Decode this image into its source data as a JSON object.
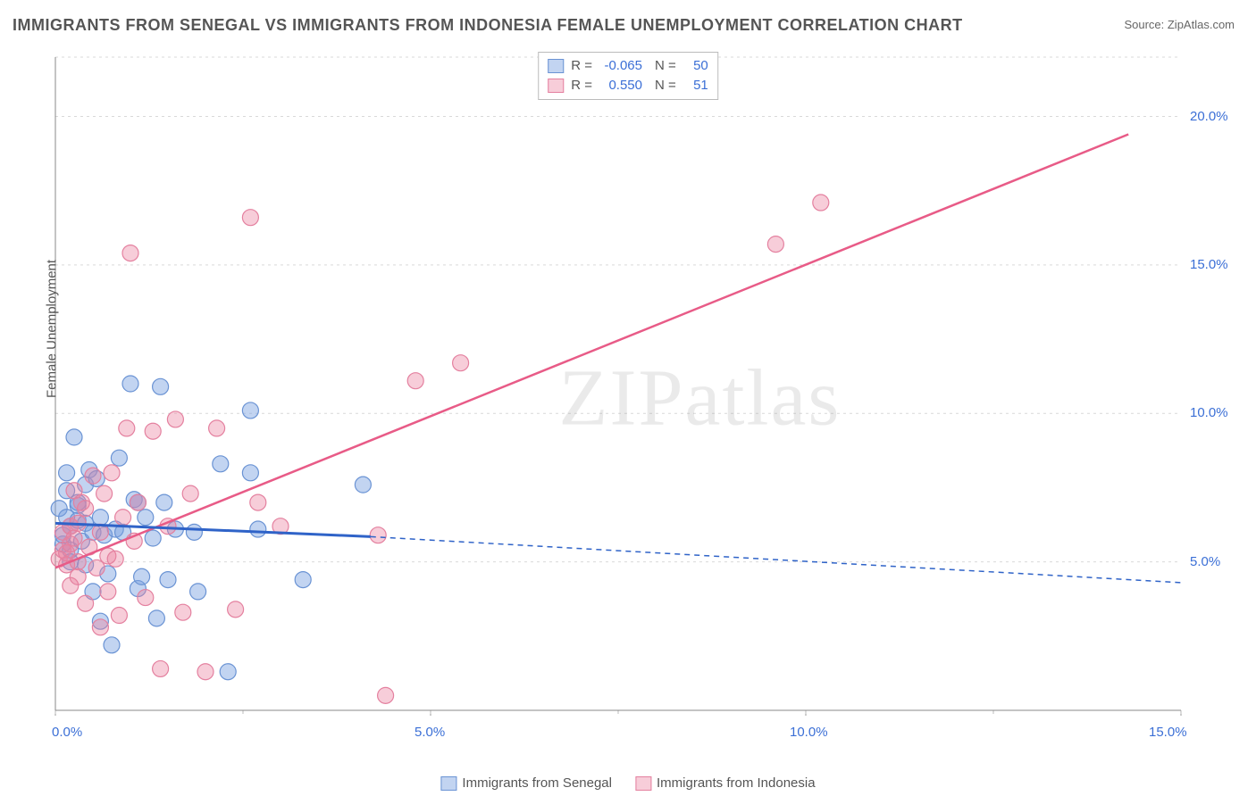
{
  "title": "IMMIGRANTS FROM SENEGAL VS IMMIGRANTS FROM INDONESIA FEMALE UNEMPLOYMENT CORRELATION CHART",
  "source_label": "Source: ZipAtlas.com",
  "watermark": "ZIPatlas",
  "ylabel": "Female Unemployment",
  "chart": {
    "type": "scatter",
    "background_color": "#ffffff",
    "grid_color": "#d9d9d9",
    "axis_border_color": "#888888",
    "xlim": [
      0,
      15
    ],
    "ylim": [
      0,
      22
    ],
    "x_ticks": [
      0,
      5,
      10,
      15
    ],
    "x_tick_labels": [
      "0.0%",
      "5.0%",
      "10.0%",
      "15.0%"
    ],
    "y_ticks": [
      5,
      10,
      15,
      20
    ],
    "y_tick_labels": [
      "5.0%",
      "10.0%",
      "15.0%",
      "20.0%"
    ],
    "tick_fontsize": 15,
    "tick_color": "#3b6fd6",
    "ylabel_fontsize": 15,
    "title_fontsize": 18,
    "series": [
      {
        "name": "Immigrants from Senegal",
        "color_fill": "rgba(120,160,225,0.45)",
        "color_stroke": "#6a93d4",
        "marker_radius": 9,
        "stats": {
          "R": "-0.065",
          "N": "50"
        },
        "regression": {
          "x1": 0,
          "y1": 6.3,
          "x2": 4.2,
          "y2": 5.85,
          "x2_dash": 15,
          "y2_dash": 4.3
        },
        "line_color": "#2f63c8",
        "line_width_solid": 3,
        "line_dash": "6 5",
        "points": [
          [
            0.05,
            6.8
          ],
          [
            0.1,
            5.6
          ],
          [
            0.1,
            5.9
          ],
          [
            0.15,
            6.5
          ],
          [
            0.15,
            7.4
          ],
          [
            0.15,
            8.0
          ],
          [
            0.2,
            5.4
          ],
          [
            0.2,
            5.0
          ],
          [
            0.2,
            6.2
          ],
          [
            0.25,
            9.2
          ],
          [
            0.3,
            6.9
          ],
          [
            0.3,
            6.4
          ],
          [
            0.3,
            7.0
          ],
          [
            0.35,
            5.7
          ],
          [
            0.4,
            4.9
          ],
          [
            0.4,
            6.3
          ],
          [
            0.4,
            7.6
          ],
          [
            0.45,
            8.1
          ],
          [
            0.5,
            4.0
          ],
          [
            0.5,
            6.0
          ],
          [
            0.55,
            7.8
          ],
          [
            0.6,
            6.5
          ],
          [
            0.6,
            3.0
          ],
          [
            0.65,
            5.9
          ],
          [
            0.7,
            4.6
          ],
          [
            0.75,
            2.2
          ],
          [
            0.8,
            6.1
          ],
          [
            0.85,
            8.5
          ],
          [
            0.9,
            6.0
          ],
          [
            1.0,
            11.0
          ],
          [
            1.05,
            7.1
          ],
          [
            1.1,
            4.1
          ],
          [
            1.1,
            7.0
          ],
          [
            1.15,
            4.5
          ],
          [
            1.2,
            6.5
          ],
          [
            1.3,
            5.8
          ],
          [
            1.35,
            3.1
          ],
          [
            1.4,
            10.9
          ],
          [
            1.45,
            7.0
          ],
          [
            1.5,
            4.4
          ],
          [
            1.6,
            6.1
          ],
          [
            1.85,
            6.0
          ],
          [
            1.9,
            4.0
          ],
          [
            2.2,
            8.3
          ],
          [
            2.3,
            1.3
          ],
          [
            2.6,
            10.1
          ],
          [
            2.6,
            8.0
          ],
          [
            2.7,
            6.1
          ],
          [
            3.3,
            4.4
          ],
          [
            4.1,
            7.6
          ]
        ]
      },
      {
        "name": "Immigrants from Indonesia",
        "color_fill": "rgba(235,130,160,0.40)",
        "color_stroke": "#e4809f",
        "marker_radius": 9,
        "stats": {
          "R": "0.550",
          "N": "51"
        },
        "regression": {
          "x1": 0,
          "y1": 4.8,
          "x2": 14.3,
          "y2": 19.4
        },
        "line_color": "#e85b87",
        "line_width_solid": 2.5,
        "points": [
          [
            0.05,
            5.1
          ],
          [
            0.1,
            5.4
          ],
          [
            0.1,
            6.0
          ],
          [
            0.15,
            4.9
          ],
          [
            0.15,
            5.3
          ],
          [
            0.2,
            6.2
          ],
          [
            0.2,
            5.6
          ],
          [
            0.2,
            4.2
          ],
          [
            0.25,
            5.8
          ],
          [
            0.25,
            7.4
          ],
          [
            0.3,
            5.0
          ],
          [
            0.3,
            4.5
          ],
          [
            0.3,
            6.3
          ],
          [
            0.35,
            7.0
          ],
          [
            0.4,
            6.8
          ],
          [
            0.4,
            3.6
          ],
          [
            0.45,
            5.5
          ],
          [
            0.5,
            7.9
          ],
          [
            0.55,
            4.8
          ],
          [
            0.6,
            2.8
          ],
          [
            0.6,
            6.0
          ],
          [
            0.65,
            7.3
          ],
          [
            0.7,
            5.2
          ],
          [
            0.7,
            4.0
          ],
          [
            0.75,
            8.0
          ],
          [
            0.8,
            5.1
          ],
          [
            0.85,
            3.2
          ],
          [
            0.9,
            6.5
          ],
          [
            0.95,
            9.5
          ],
          [
            1.0,
            15.4
          ],
          [
            1.05,
            5.7
          ],
          [
            1.1,
            7.0
          ],
          [
            1.2,
            3.8
          ],
          [
            1.3,
            9.4
          ],
          [
            1.4,
            1.4
          ],
          [
            1.5,
            6.2
          ],
          [
            1.6,
            9.8
          ],
          [
            1.7,
            3.3
          ],
          [
            1.8,
            7.3
          ],
          [
            2.0,
            1.3
          ],
          [
            2.15,
            9.5
          ],
          [
            2.4,
            3.4
          ],
          [
            2.6,
            16.6
          ],
          [
            2.7,
            7.0
          ],
          [
            3.0,
            6.2
          ],
          [
            4.3,
            5.9
          ],
          [
            4.4,
            0.5
          ],
          [
            4.8,
            11.1
          ],
          [
            5.4,
            11.7
          ],
          [
            9.6,
            15.7
          ],
          [
            10.2,
            17.1
          ]
        ]
      }
    ]
  },
  "legend_top": [
    {
      "swatch_fill": "rgba(120,160,225,0.45)",
      "swatch_stroke": "#6a93d4",
      "R_label": "R =",
      "R_val": "-0.065",
      "N_label": "N =",
      "N_val": "50"
    },
    {
      "swatch_fill": "rgba(235,130,160,0.40)",
      "swatch_stroke": "#e4809f",
      "R_label": "R =",
      "R_val": "0.550",
      "N_label": "N =",
      "N_val": "51"
    }
  ],
  "legend_bottom": [
    {
      "swatch_fill": "rgba(120,160,225,0.45)",
      "swatch_stroke": "#6a93d4",
      "label": "Immigrants from Senegal"
    },
    {
      "swatch_fill": "rgba(235,130,160,0.40)",
      "swatch_stroke": "#e4809f",
      "label": "Immigrants from Indonesia"
    }
  ]
}
